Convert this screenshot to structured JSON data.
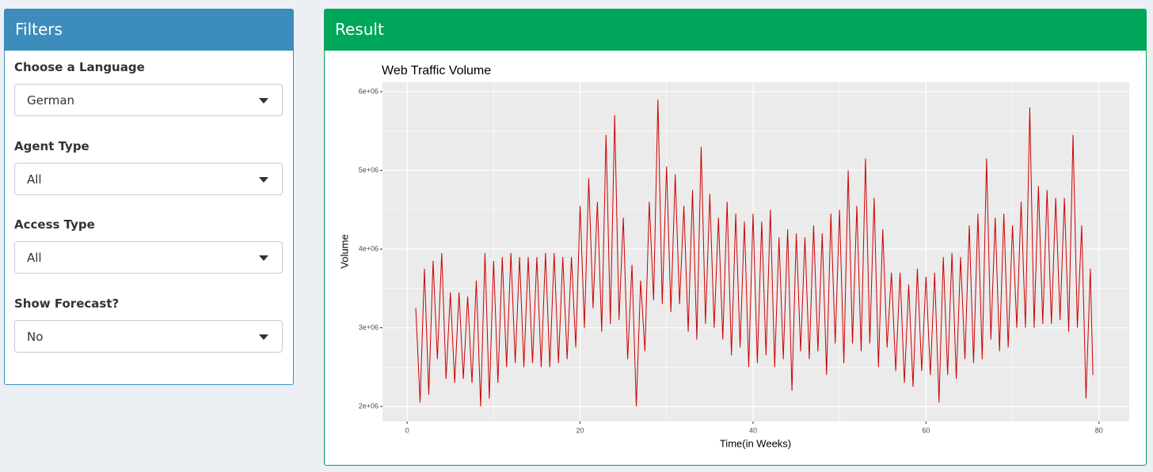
{
  "filters": {
    "title": "Filters",
    "fields": [
      {
        "label": "Choose a Language",
        "value": "German"
      },
      {
        "label": "Agent Type",
        "value": "All"
      },
      {
        "label": "Access Type",
        "value": "All"
      },
      {
        "label": "Show Forecast?",
        "value": "No"
      }
    ]
  },
  "result": {
    "title": "Result"
  },
  "chart_data": {
    "type": "line",
    "title": "Web Traffic Volume",
    "x_label": "Time(in Weeks)",
    "y_label": "Volume",
    "color": "#cc0000",
    "grid": true,
    "xlim": [
      -2.85,
      83.5
    ],
    "xticks": [
      0,
      20,
      40,
      60,
      80
    ],
    "ylim": [
      1810000,
      6120000
    ],
    "yticks": [
      {
        "value": 2000000,
        "label": "2e+06"
      },
      {
        "value": 3000000,
        "label": "3e+06"
      },
      {
        "value": 4000000,
        "label": "4e+06"
      },
      {
        "value": 5000000,
        "label": "5e+06"
      },
      {
        "value": 6000000,
        "label": "6e+06"
      }
    ],
    "x": [
      1,
      1.5,
      2,
      2.5,
      3,
      3.5,
      4,
      4.5,
      5,
      5.5,
      6,
      6.5,
      7,
      7.5,
      8,
      8.5,
      9,
      9.5,
      10,
      10.5,
      11,
      11.5,
      12,
      12.5,
      13,
      13.5,
      14,
      14.5,
      15,
      15.5,
      16,
      16.5,
      17,
      17.5,
      18,
      18.5,
      19,
      19.5,
      20,
      20.5,
      21,
      21.5,
      22,
      22.5,
      23,
      23.5,
      24,
      24.5,
      25,
      25.5,
      26,
      26.5,
      27,
      27.5,
      28,
      28.5,
      29,
      29.5,
      30,
      30.5,
      31,
      31.5,
      32,
      32.5,
      33,
      33.5,
      34,
      34.5,
      35,
      35.5,
      36,
      36.5,
      37,
      37.5,
      38,
      38.5,
      39,
      39.5,
      40,
      40.5,
      41,
      41.5,
      42,
      42.5,
      43,
      43.5,
      44,
      44.5,
      45,
      45.5,
      46,
      46.5,
      47,
      47.5,
      48,
      48.5,
      49,
      49.5,
      50,
      50.5,
      51,
      51.5,
      52,
      52.5,
      53,
      53.5,
      54,
      54.5,
      55,
      55.5,
      56,
      56.5,
      57,
      57.5,
      58,
      58.5,
      59,
      59.5,
      60,
      60.5,
      61,
      61.5,
      62,
      62.5,
      63,
      63.5,
      64,
      64.5,
      65,
      65.5,
      66,
      66.5,
      67,
      67.5,
      68,
      68.5,
      69,
      69.5,
      70,
      70.5,
      71,
      71.5,
      72,
      72.5,
      73,
      73.5,
      74,
      74.5,
      75,
      75.5,
      76,
      76.5,
      77,
      77.5,
      78,
      78.5,
      79,
      79.3
    ],
    "values": [
      3250000,
      2050000,
      3750000,
      2150000,
      3850000,
      2600000,
      3950000,
      2350000,
      3450000,
      2300000,
      3450000,
      2350000,
      3400000,
      2300000,
      3600000,
      2000000,
      3950000,
      2100000,
      3850000,
      2300000,
      3900000,
      2500000,
      3950000,
      2550000,
      3900000,
      2500000,
      3900000,
      2550000,
      3900000,
      2500000,
      3950000,
      2500000,
      3950000,
      2550000,
      3900000,
      2600000,
      3900000,
      2750000,
      4550000,
      3000000,
      4900000,
      3250000,
      4600000,
      2950000,
      5450000,
      3050000,
      5700000,
      3100000,
      4400000,
      2600000,
      3800000,
      2000000,
      3600000,
      2700000,
      4600000,
      3350000,
      5900000,
      3300000,
      5050000,
      3200000,
      4950000,
      3300000,
      4550000,
      2950000,
      4750000,
      2850000,
      5300000,
      3050000,
      4700000,
      3000000,
      4400000,
      2850000,
      4600000,
      2650000,
      4450000,
      2750000,
      4350000,
      2500000,
      4450000,
      2550000,
      4350000,
      2650000,
      4500000,
      2500000,
      4150000,
      2600000,
      4250000,
      2200000,
      4200000,
      2700000,
      4150000,
      2600000,
      4300000,
      2700000,
      4200000,
      2400000,
      4450000,
      2800000,
      4500000,
      2550000,
      5000000,
      2800000,
      4550000,
      2700000,
      5150000,
      2800000,
      4650000,
      2500000,
      4250000,
      2750000,
      3700000,
      2450000,
      3700000,
      2300000,
      3550000,
      2250000,
      3750000,
      2450000,
      3650000,
      2400000,
      3700000,
      2050000,
      3900000,
      2400000,
      3950000,
      2350000,
      3900000,
      2600000,
      4300000,
      2550000,
      4450000,
      2600000,
      5150000,
      2850000,
      4400000,
      2700000,
      4450000,
      2750000,
      4300000,
      3000000,
      4600000,
      3000000,
      5800000,
      3000000,
      4800000,
      3050000,
      4750000,
      3050000,
      4650000,
      3100000,
      4650000,
      2950000,
      5450000,
      3000000,
      4300000,
      2100000,
      3750000,
      2400000
    ]
  }
}
